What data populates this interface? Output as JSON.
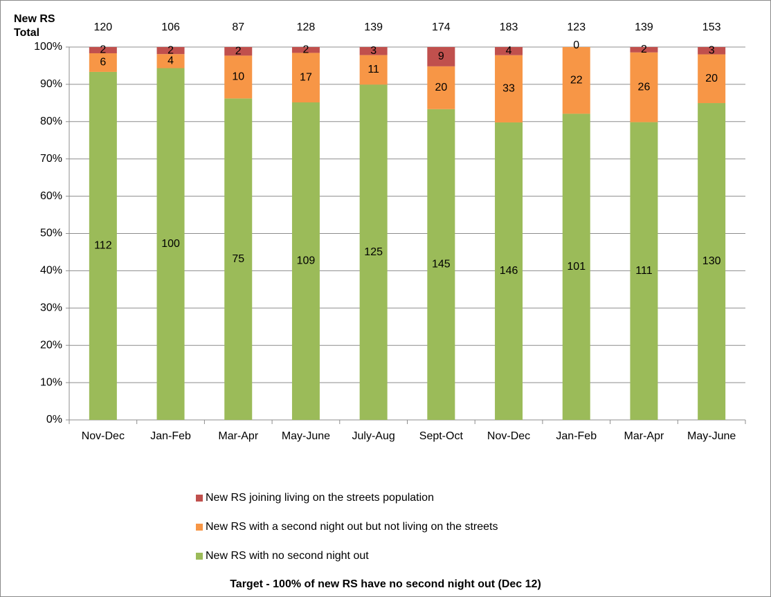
{
  "chart_data": {
    "type": "bar",
    "stacking": "percent",
    "categories": [
      "Nov-Dec",
      "Jan-Feb",
      "Mar-Apr",
      "May-June",
      "July-Aug",
      "Sept-Oct",
      "Nov-Dec",
      "Jan-Feb",
      "Mar-Apr",
      "May-June"
    ],
    "series": [
      {
        "name": "New RS with no second night out",
        "color": "#9bbb59",
        "values": [
          112,
          100,
          75,
          109,
          125,
          145,
          146,
          101,
          111,
          130
        ]
      },
      {
        "name": "New RS with a second night out but not living on the streets",
        "color": "#f79646",
        "values": [
          6,
          4,
          10,
          17,
          11,
          20,
          33,
          22,
          26,
          20
        ]
      },
      {
        "name": "New RS joining living on the streets population",
        "color": "#c0504d",
        "values": [
          2,
          2,
          2,
          2,
          3,
          9,
          4,
          0,
          2,
          3
        ]
      }
    ],
    "totals_label": [
      "New RS",
      "Total"
    ],
    "totals": [
      120,
      106,
      87,
      128,
      139,
      174,
      183,
      123,
      139,
      153
    ],
    "ylim": [
      0,
      100
    ],
    "yticks": [
      {
        "value": 0,
        "label": "0%"
      },
      {
        "value": 10,
        "label": "10%"
      },
      {
        "value": 20,
        "label": "20%"
      },
      {
        "value": 30,
        "label": "30%"
      },
      {
        "value": 40,
        "label": "40%"
      },
      {
        "value": 50,
        "label": "50%"
      },
      {
        "value": 60,
        "label": "60%"
      },
      {
        "value": 70,
        "label": "70%"
      },
      {
        "value": 80,
        "label": "80%"
      },
      {
        "value": 90,
        "label": "90%"
      },
      {
        "value": 100,
        "label": "100%"
      }
    ],
    "grid": true,
    "legend": "bottom",
    "footnote": "Target - 100% of new RS have no second night out (Dec 12)"
  }
}
